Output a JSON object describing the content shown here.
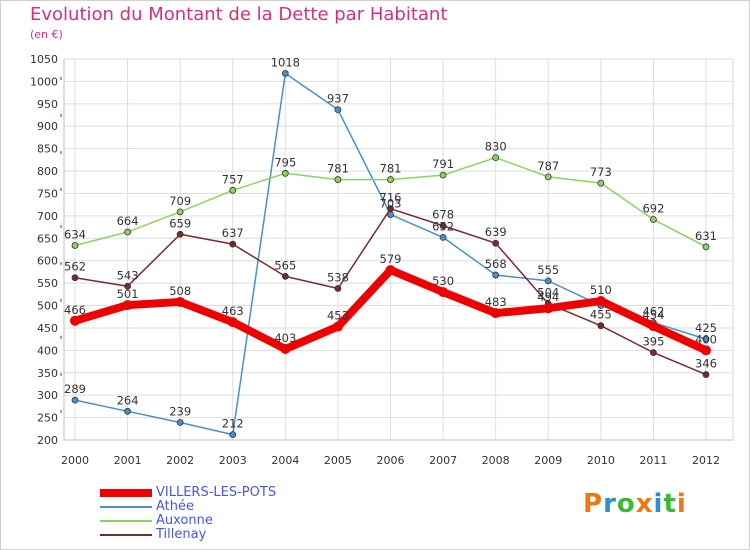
{
  "title": "Evolution du Montant de la Dette par Habitant",
  "unit": "(en €)",
  "brand": {
    "letters": [
      "P",
      "r",
      "o",
      "x",
      "i",
      "t",
      "i"
    ],
    "colors": [
      "#ee7711",
      "#2a8fd6",
      "#3db838",
      "#ee7711",
      "#2a8fd6",
      "#3db838",
      "#ee7711"
    ]
  },
  "chart_data": {
    "type": "line",
    "x": [
      "2000",
      "2001",
      "2002",
      "2003",
      "2004",
      "2005",
      "2006",
      "2007",
      "2008",
      "2009",
      "2010",
      "2011",
      "2012"
    ],
    "ylim": [
      200,
      1050
    ],
    "yticks": [
      200,
      250,
      300,
      350,
      400,
      450,
      500,
      550,
      600,
      650,
      700,
      750,
      800,
      850,
      900,
      950,
      1000,
      1050
    ],
    "grid": true,
    "legend_position": "bottom-left",
    "series": [
      {
        "name": "VILLERS-LES-POTS",
        "color": "#ee0000",
        "width": 8,
        "values": [
          466,
          501,
          508,
          463,
          403,
          453,
          579,
          530,
          483,
          494,
          510,
          454,
          400
        ],
        "labels": [
          "466",
          "501",
          "508",
          "463",
          "403",
          "453",
          "579",
          "530",
          "483",
          "494",
          "510",
          "454",
          "400"
        ]
      },
      {
        "name": "Athée",
        "color": "#4a90c8",
        "width": 1.5,
        "values": [
          289,
          264,
          239,
          212,
          1018,
          937,
          703,
          652,
          568,
          555,
          500,
          462,
          425
        ],
        "labels": [
          "289",
          "264",
          "239",
          "212",
          "1018",
          "937",
          "703",
          "652",
          "568",
          "555",
          "",
          "462",
          "425"
        ]
      },
      {
        "name": "Auxonne",
        "color": "#8ed263",
        "width": 1.5,
        "values": [
          634,
          664,
          709,
          757,
          795,
          781,
          781,
          791,
          830,
          787,
          773,
          692,
          631
        ],
        "labels": [
          "634",
          "664",
          "709",
          "757",
          "795",
          "781",
          "781",
          "791",
          "830",
          "787",
          "773",
          "692",
          "631"
        ]
      },
      {
        "name": "Tillenay",
        "color": "#7a2a2a",
        "width": 1.5,
        "values": [
          562,
          543,
          659,
          637,
          565,
          538,
          716,
          678,
          639,
          504,
          455,
          395,
          346
        ],
        "labels": [
          "562",
          "543",
          "659",
          "637",
          "565",
          "538",
          "716",
          "678",
          "639",
          "504",
          "455",
          "395",
          "346"
        ]
      }
    ]
  }
}
